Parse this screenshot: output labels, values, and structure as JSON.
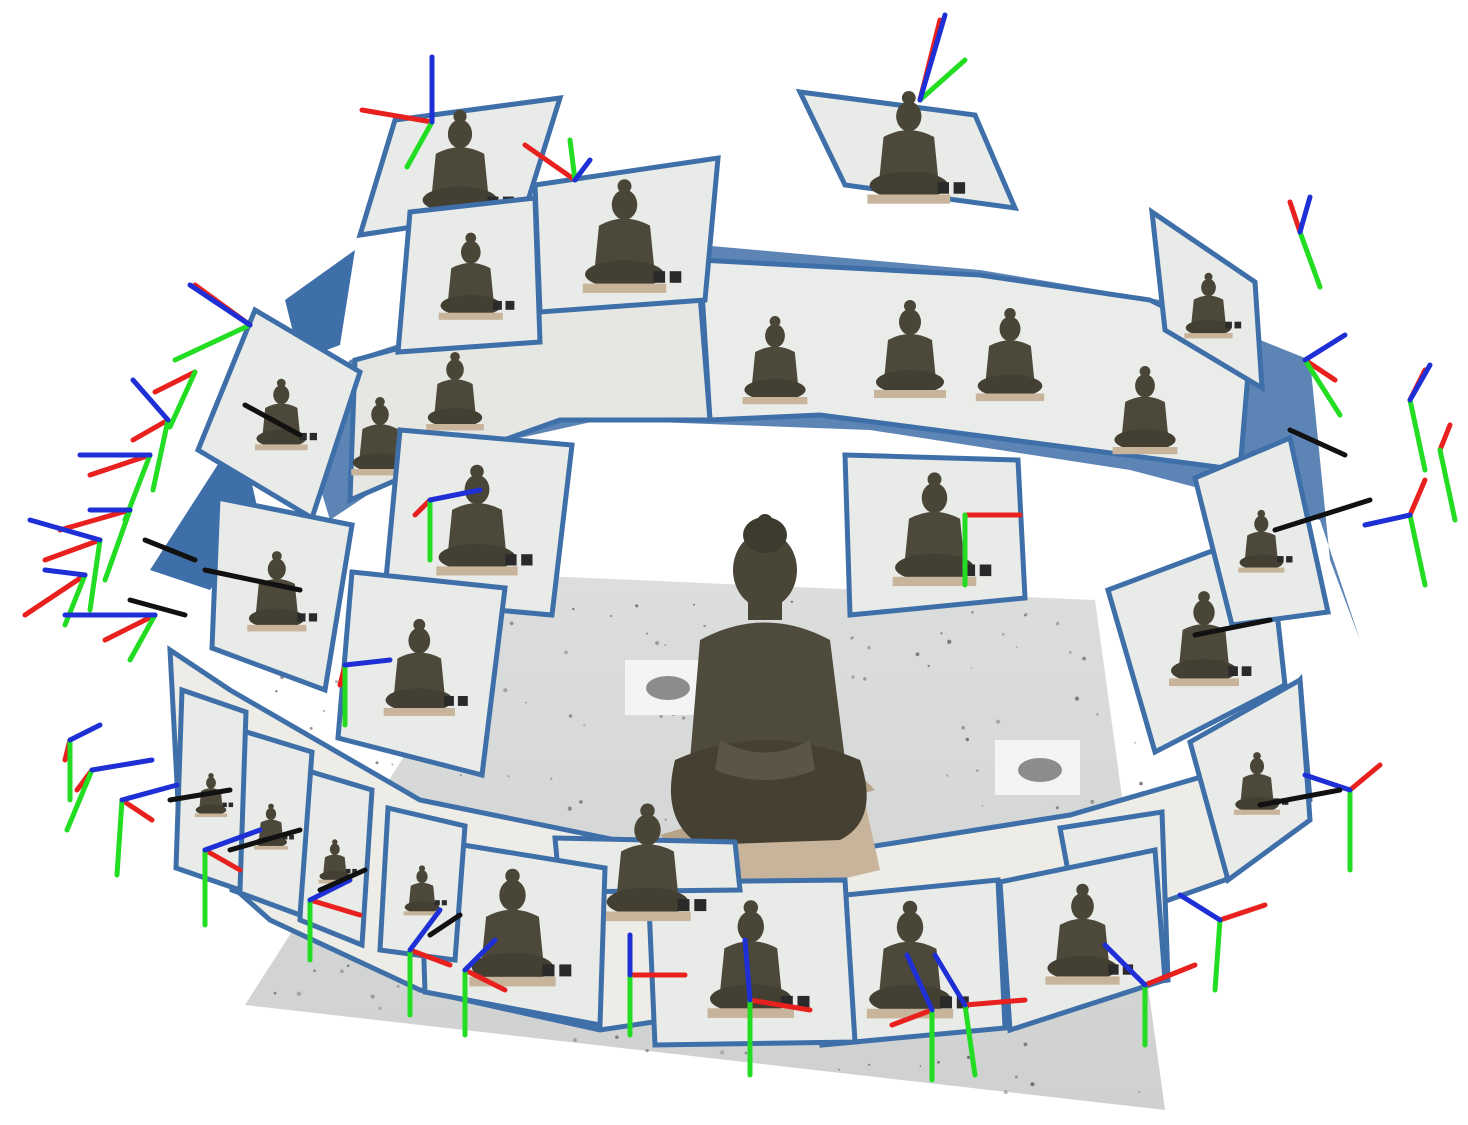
{
  "scene": {
    "type": "camera-pose-reconstruction-visualization",
    "subject": "seated-buddha-statue",
    "camera_count": 40,
    "colors": {
      "frame_border": "#3f6fa8",
      "ring_fill": "#3f6fa8",
      "axis_x": "#e8201e",
      "axis_y": "#22dd22",
      "axis_z": "#1e2fd6",
      "view_ray": "#111111",
      "ground_point_cloud": "#d7d9d8",
      "photo_background": "#e9ebe8",
      "statue": "#4a4637",
      "statue_base": "#c8b49a",
      "marker": "#2a2a2a"
    }
  }
}
